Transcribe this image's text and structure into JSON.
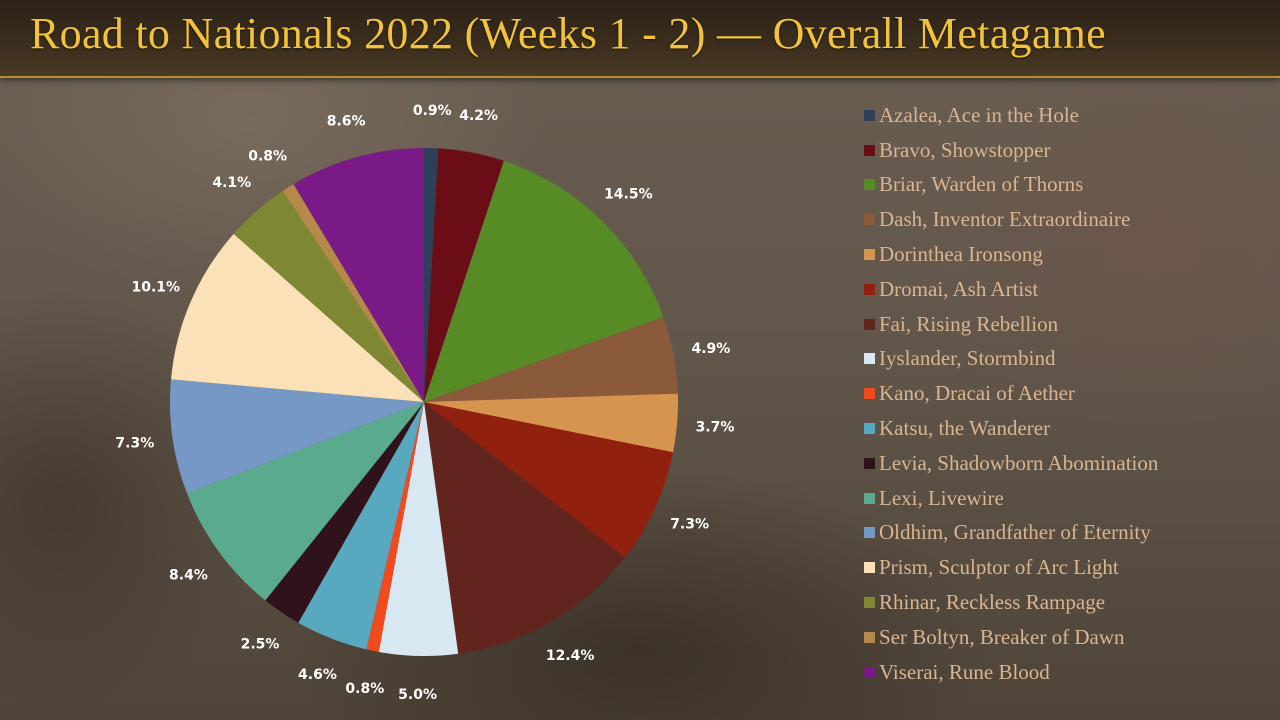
{
  "page_title": "Road to Nationals 2022 (Weeks 1 - 2) — Overall Metagame",
  "chart_data": {
    "type": "pie",
    "title": "Road to Nationals 2022 (Weeks 1 - 2) — Overall Metagame",
    "legend_position": "right",
    "start_angle": "12 o'clock",
    "direction": "clockwise",
    "slices": [
      {
        "label": "Azalea, Ace in the Hole",
        "value": 0.9,
        "display": "0.9%",
        "color": "#2e4057"
      },
      {
        "label": "Bravo, Showstopper",
        "value": 4.2,
        "display": "4.2%",
        "color": "#6b0d17"
      },
      {
        "label": "Briar, Warden of Thorns",
        "value": 14.5,
        "display": "14.5%",
        "color": "#568b26"
      },
      {
        "label": "Dash, Inventor Extraordinaire",
        "value": 4.9,
        "display": "4.9%",
        "color": "#8b5a3a"
      },
      {
        "label": "Dorinthea Ironsong",
        "value": 3.7,
        "display": "3.7%",
        "color": "#d6944f"
      },
      {
        "label": "Dromai, Ash Artist",
        "value": 7.3,
        "display": "7.3%",
        "color": "#92200e"
      },
      {
        "label": "Fai, Rising Rebellion",
        "value": 12.4,
        "display": "12.4%",
        "color": "#62251e"
      },
      {
        "label": "Iyslander, Stormbind",
        "value": 5.0,
        "display": "5.0%",
        "color": "#d8e8f3"
      },
      {
        "label": "Kano, Dracai of Aether",
        "value": 0.8,
        "display": "0.8%",
        "color": "#f04a1e"
      },
      {
        "label": "Katsu, the Wanderer",
        "value": 4.6,
        "display": "4.6%",
        "color": "#58a8c0"
      },
      {
        "label": "Levia, Shadowborn Abomination",
        "value": 2.5,
        "display": "2.5%",
        "color": "#2f121a"
      },
      {
        "label": "Lexi, Livewire",
        "value": 8.4,
        "display": "8.4%",
        "color": "#5aab8e"
      },
      {
        "label": "Oldhim, Grandfather of Eternity",
        "value": 7.3,
        "display": "7.3%",
        "color": "#7698c4"
      },
      {
        "label": "Prism, Sculptor of Arc Light",
        "value": 10.1,
        "display": "10.1%",
        "color": "#fbe1b8"
      },
      {
        "label": "Rhinar, Reckless Rampage",
        "value": 4.1,
        "display": "4.1%",
        "color": "#7e8832"
      },
      {
        "label": "Ser Boltyn, Breaker of Dawn",
        "value": 0.8,
        "display": "0.8%",
        "color": "#b4894a"
      },
      {
        "label": "Viserai, Rune Blood",
        "value": 8.6,
        "display": "8.6%",
        "color": "#7a1a86"
      }
    ]
  }
}
